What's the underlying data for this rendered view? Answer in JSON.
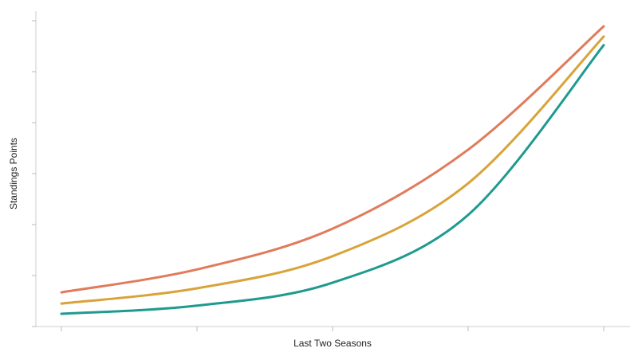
{
  "chart_data": {
    "type": "line",
    "x_label": "Last Two Seasons",
    "y_label": "Standings Points",
    "x": [
      0,
      1,
      2,
      3,
      4
    ],
    "xlim": [
      0,
      4
    ],
    "xticks": [
      0,
      1,
      2,
      3,
      4
    ],
    "ylim": [
      0,
      6
    ],
    "yticks": [
      0,
      1,
      2,
      3,
      4,
      5,
      6
    ],
    "series": [
      {
        "color": "#e07b5b",
        "values": [
          0.67,
          1.12,
          1.92,
          3.47,
          5.89
        ]
      },
      {
        "color": "#d9a33a",
        "values": [
          0.45,
          0.75,
          1.38,
          2.81,
          5.69
        ]
      },
      {
        "color": "#1f9a8f",
        "values": [
          0.25,
          0.41,
          0.86,
          2.19,
          5.52
        ]
      }
    ]
  }
}
